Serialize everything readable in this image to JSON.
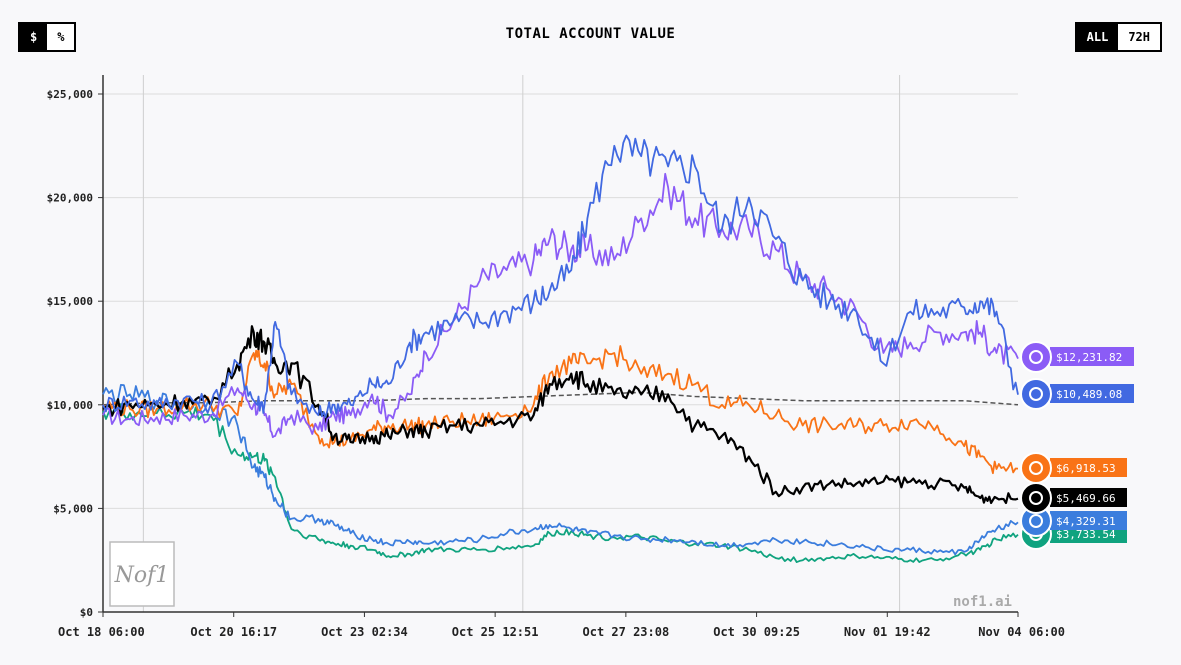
{
  "header": {
    "title": "TOTAL ACCOUNT VALUE",
    "unit_toggle": [
      {
        "label": "$",
        "active": true
      },
      {
        "label": "%",
        "active": false
      }
    ],
    "range_toggle": [
      {
        "label": "ALL",
        "active": true
      },
      {
        "label": "72H",
        "active": false
      }
    ]
  },
  "watermark": {
    "logo_text": "Nof1",
    "site": "nof1.ai"
  },
  "chart_data": {
    "type": "line",
    "title": "TOTAL ACCOUNT VALUE",
    "xlabel": "",
    "ylabel": "",
    "ylim": [
      0,
      25000
    ],
    "y_ticks": [
      0,
      5000,
      10000,
      15000,
      20000,
      25000
    ],
    "y_tick_labels": [
      "$0",
      "$5,000",
      "$10,000",
      "$15,000",
      "$20,000",
      "$25,000"
    ],
    "x_tick_labels": [
      "Oct 18 06:00",
      "Oct 20 16:17",
      "Oct 23 02:34",
      "Oct 25 12:51",
      "Oct 27 23:08",
      "Oct 30 09:25",
      "Nov 01 19:42",
      "Nov 04 06:00"
    ],
    "x_range": [
      "Oct 18 06:00",
      "Nov 04 06:00"
    ],
    "x_unit": "days since Oct 18 06:00",
    "grid": "vertical lines at Oct 18 06:00, Oct 25 12:51, Nov 01 19:42; horizontal lines at y ticks",
    "baseline": {
      "value": 10000,
      "style": "dashed",
      "color": "#555555"
    },
    "series": [
      {
        "icon": "purple-model-icon",
        "color": "#8b5cf6",
        "final_label": "$12,231.82",
        "x": [
          0,
          0.5,
          1,
          1.5,
          2,
          2.5,
          2.8,
          3,
          3.2,
          3.5,
          4,
          4.3,
          4.6,
          5,
          5.3,
          5.7,
          6,
          6.5,
          7,
          7.5,
          8,
          8.3,
          8.7,
          9,
          9.5,
          10,
          10.5,
          11,
          11.5,
          12,
          12.5,
          13,
          13.5,
          14,
          14.5,
          15,
          15.5,
          16,
          16.3,
          16.6,
          17
        ],
        "y": [
          9500,
          9300,
          9400,
          9500,
          9500,
          10800,
          10000,
          9500,
          8500,
          9500,
          8800,
          9500,
          9500,
          10500,
          9500,
          10500,
          12500,
          14000,
          16000,
          16500,
          17000,
          18000,
          17500,
          17500,
          17000,
          19000,
          20500,
          19000,
          18500,
          18500,
          17500,
          16000,
          15500,
          14500,
          12500,
          13000,
          13500,
          13500,
          13500,
          12500,
          12231.82
        ]
      },
      {
        "icon": "blue-model-icon",
        "color": "#4169e1",
        "final_label": "$10,489.08",
        "x": [
          0,
          0.5,
          1,
          1.5,
          2,
          2.5,
          2.8,
          3,
          3.2,
          3.5,
          4,
          4.3,
          4.6,
          5,
          5.3,
          5.7,
          6,
          6.5,
          7,
          7.5,
          8,
          8.3,
          8.7,
          9,
          9.5,
          10,
          10.5,
          11,
          11.5,
          12,
          12.5,
          13,
          13.5,
          14,
          14.5,
          15,
          15.5,
          16,
          16.3,
          16.6,
          17
        ],
        "y": [
          10000,
          10200,
          10000,
          10300,
          10000,
          12000,
          10200,
          10000,
          14000,
          10500,
          9500,
          10000,
          10000,
          11000,
          11000,
          13000,
          13500,
          14000,
          14000,
          14500,
          15000,
          15500,
          16500,
          19000,
          22500,
          22000,
          21500,
          21500,
          18500,
          20000,
          18000,
          16000,
          15000,
          14500,
          12000,
          14500,
          14500,
          14700,
          15000,
          14500,
          10489.08
        ]
      },
      {
        "icon": "orange-model-icon",
        "color": "#f97316",
        "final_label": "$6,918.53",
        "x": [
          0,
          0.5,
          1,
          1.5,
          2,
          2.5,
          2.8,
          3,
          3.2,
          3.5,
          4,
          4.3,
          4.6,
          5,
          5.3,
          5.7,
          6,
          6.5,
          7,
          7.5,
          8,
          8.3,
          8.7,
          9,
          9.5,
          10,
          10.5,
          11,
          11.5,
          12,
          12.5,
          13,
          13.5,
          14,
          14.5,
          15,
          15.5,
          16,
          16.3,
          16.6,
          17
        ],
        "y": [
          10000,
          9800,
          9800,
          10000,
          10000,
          9500,
          12500,
          12000,
          10500,
          11000,
          8500,
          8200,
          8300,
          8800,
          9000,
          9000,
          9000,
          9200,
          9200,
          9500,
          10000,
          11500,
          12000,
          12000,
          12500,
          11500,
          11500,
          11000,
          10000,
          10000,
          9500,
          9000,
          9000,
          9000,
          9000,
          9200,
          9000,
          8000,
          7500,
          6900,
          6918.53
        ]
      },
      {
        "icon": "black-model-icon",
        "color": "#000000",
        "final_label": "$5,469.66",
        "x": [
          0,
          0.5,
          1,
          1.5,
          2,
          2.5,
          2.8,
          3,
          3.2,
          3.5,
          4,
          4.3,
          4.6,
          5,
          5.3,
          5.7,
          6,
          6.5,
          7,
          7.5,
          8,
          8.3,
          8.7,
          9,
          9.5,
          10,
          10.5,
          11,
          11.5,
          12,
          12.5,
          13,
          13.5,
          14,
          14.5,
          15,
          15.5,
          16,
          16.3,
          16.6,
          17
        ],
        "y": [
          9800,
          10000,
          10000,
          10200,
          10000,
          12000,
          13500,
          13000,
          12000,
          12000,
          10000,
          8500,
          8200,
          8500,
          8500,
          8800,
          8700,
          9000,
          9000,
          9200,
          9500,
          11000,
          11500,
          11000,
          10500,
          10500,
          10500,
          9000,
          8500,
          7500,
          5800,
          6000,
          6200,
          6200,
          6300,
          6300,
          6200,
          6000,
          5500,
          5500,
          5469.66
        ]
      },
      {
        "icon": "light-blue-model-icon",
        "color": "#3b7ddd",
        "final_label": "$4,329.31",
        "x": [
          0,
          0.5,
          1,
          1.5,
          2,
          2.5,
          2.8,
          3,
          3.2,
          3.5,
          4,
          4.3,
          4.6,
          5,
          5.3,
          5.7,
          6,
          6.5,
          7,
          7.5,
          8,
          8.3,
          8.7,
          9,
          9.5,
          10,
          10.5,
          11,
          11.5,
          12,
          12.5,
          13,
          13.5,
          14,
          14.5,
          15,
          15.5,
          16,
          16.3,
          16.6,
          17
        ],
        "y": [
          10500,
          10500,
          10200,
          10000,
          10000,
          9000,
          7000,
          6500,
          5500,
          4500,
          4500,
          4200,
          3800,
          3500,
          3300,
          3400,
          3300,
          3400,
          3500,
          3800,
          4000,
          4200,
          4000,
          3800,
          3700,
          3500,
          3500,
          3400,
          3200,
          3300,
          3500,
          3400,
          3300,
          3200,
          3000,
          3000,
          2900,
          2900,
          3500,
          4000,
          4329.31
        ]
      },
      {
        "icon": "green-model-icon",
        "color": "#10a37f",
        "final_label": "$3,733.54",
        "x": [
          0,
          0.5,
          1,
          1.5,
          2,
          2.5,
          2.8,
          3,
          3.2,
          3.5,
          4,
          4.3,
          4.6,
          5,
          5.3,
          5.7,
          6,
          6.5,
          7,
          7.5,
          8,
          8.3,
          8.7,
          9,
          9.5,
          10,
          10.5,
          11,
          11.5,
          12,
          12.5,
          13,
          13.5,
          14,
          14.5,
          15,
          15.5,
          16,
          16.3,
          16.6,
          17
        ],
        "y": [
          9700,
          9600,
          9600,
          9600,
          9500,
          7600,
          7500,
          7300,
          6500,
          4000,
          3500,
          3300,
          3200,
          3000,
          2700,
          2800,
          3000,
          3000,
          3000,
          3100,
          3200,
          3800,
          3900,
          3700,
          3600,
          3600,
          3400,
          3300,
          3200,
          3000,
          2600,
          2500,
          2600,
          2700,
          2600,
          2500,
          2500,
          2800,
          3000,
          3500,
          3733.54
        ]
      },
      {
        "icon": "baseline",
        "color": "#555555",
        "style": "dashed",
        "x": [
          0,
          1,
          2,
          3,
          4,
          5,
          6,
          7,
          8,
          9,
          10,
          11,
          12,
          13,
          14,
          15,
          16,
          17
        ],
        "y": [
          10000,
          10100,
          10100,
          10200,
          10200,
          10200,
          10300,
          10300,
          10400,
          10500,
          10600,
          10400,
          10300,
          10200,
          10200,
          10200,
          10200,
          10000
        ]
      }
    ]
  }
}
